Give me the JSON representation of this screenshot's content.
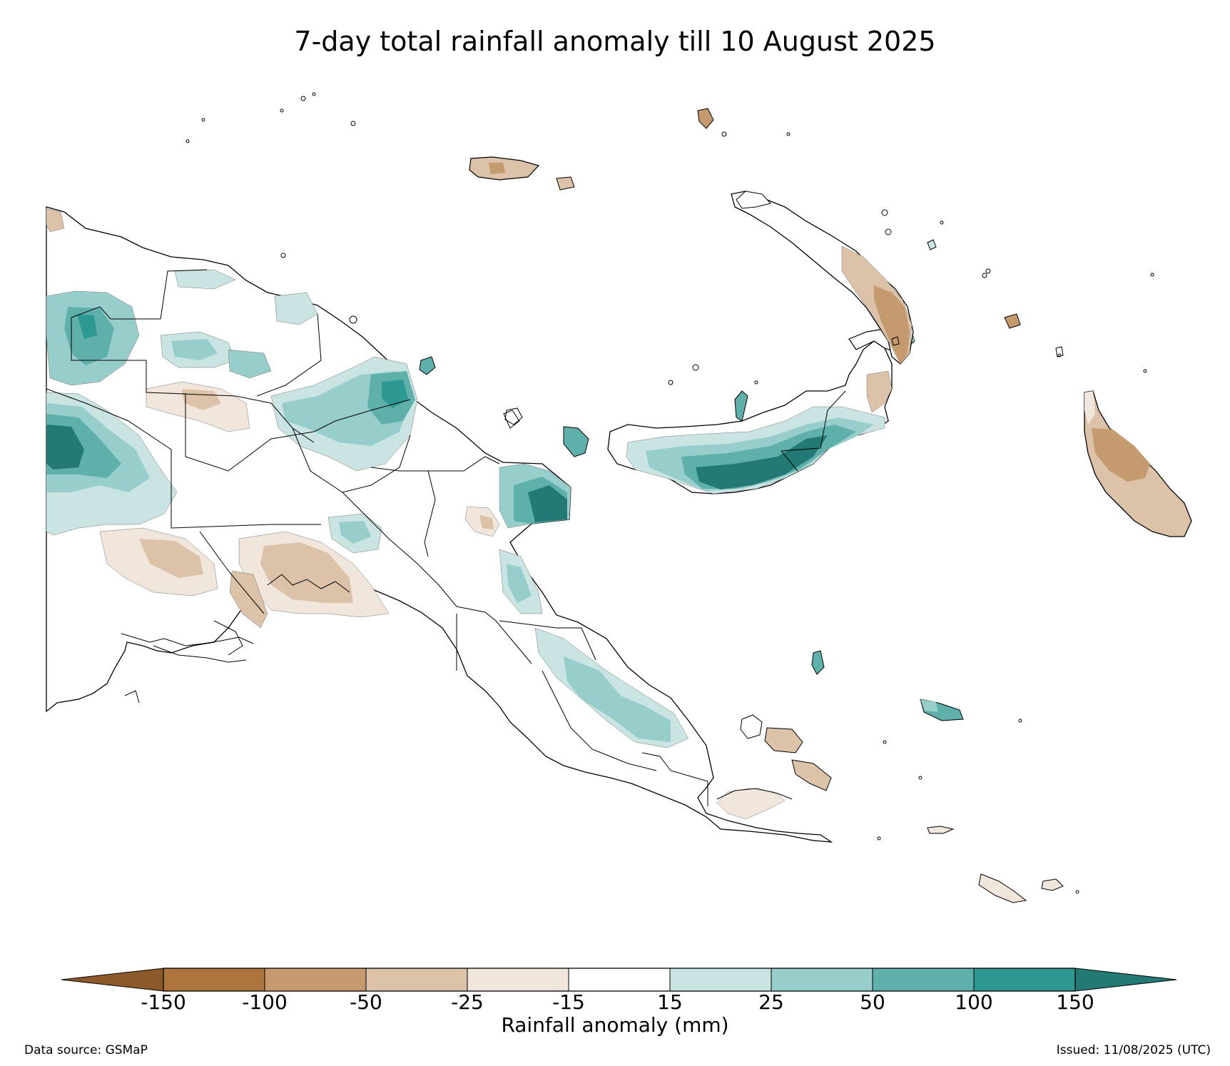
{
  "title": "7-day total rainfall anomaly till 10 August 2025",
  "colorbar": {
    "label": "Rainfall anomaly (mm)",
    "ticks": [
      "-150",
      "-100",
      "-50",
      "-25",
      "-15",
      "15",
      "25",
      "50",
      "100",
      "150"
    ],
    "bins": [
      {
        "range": "< -150",
        "color": "#8c5a2a"
      },
      {
        "range": "-150 to -100",
        "color": "#ad753d"
      },
      {
        "range": "-100 to -50",
        "color": "#c49a6e"
      },
      {
        "range": "-50 to -25",
        "color": "#dcc2a8"
      },
      {
        "range": "-25 to -15",
        "color": "#f1e6dc"
      },
      {
        "range": "-15 to 15",
        "color": "#ffffff"
      },
      {
        "range": "15 to 25",
        "color": "#c9e4e2"
      },
      {
        "range": "25 to 50",
        "color": "#97cecb"
      },
      {
        "range": "50 to 100",
        "color": "#5fb0ab"
      },
      {
        "range": "100 to 150",
        "color": "#2e9892"
      },
      {
        "range": "> 150",
        "color": "#237a74"
      }
    ]
  },
  "footer": {
    "source": "Data source: GSMaP",
    "issued": "Issued: 11/08/2025 (UTC)"
  }
}
